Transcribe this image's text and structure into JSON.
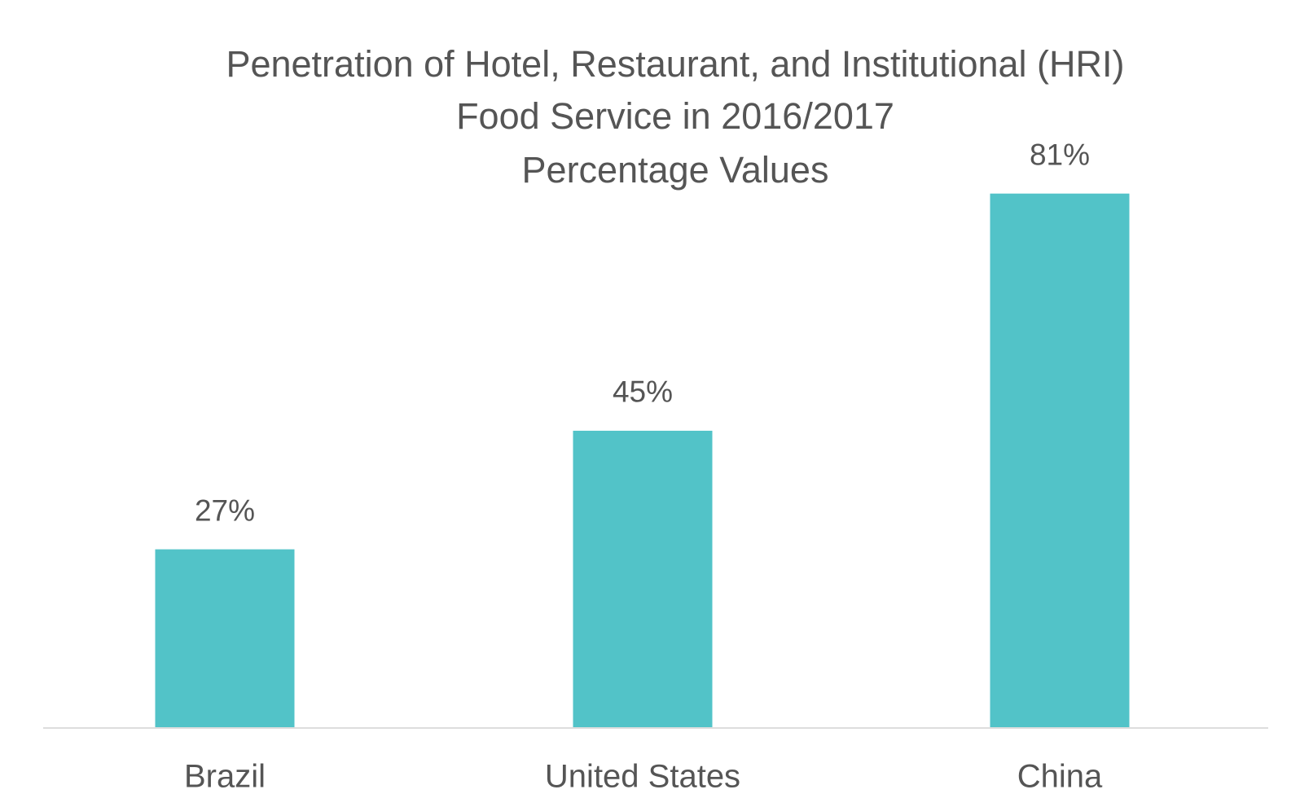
{
  "chart_data": {
    "type": "bar",
    "title": [
      "Penetration of Hotel, Restaurant, and Institutional (HRI)",
      "Food Service in 2016/2017"
    ],
    "subtitle": "Percentage Values",
    "categories": [
      "Brazil",
      "United States",
      "China"
    ],
    "values": [
      27,
      45,
      81
    ],
    "value_labels": [
      "27%",
      "45%",
      "81%"
    ],
    "color": "#52c3c8"
  }
}
